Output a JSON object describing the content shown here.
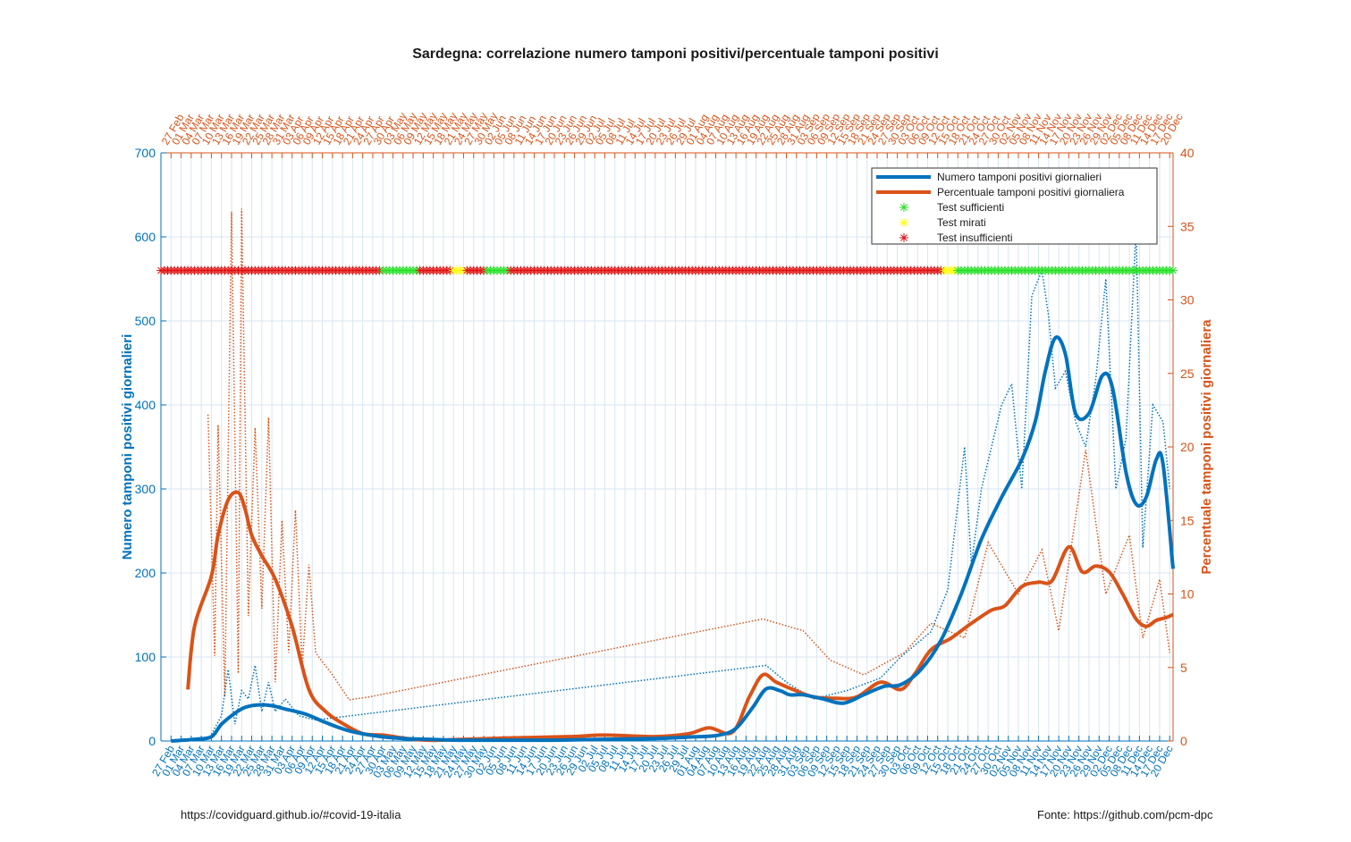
{
  "chart_data": {
    "type": "line",
    "title": "Sardegna: correlazione numero tamponi positivi/percentuale tamponi positivi",
    "ylabel_left": "Numero tamponi positivi giornalieri",
    "ylabel_right": "Percentuale tamponi positivi giornaliera",
    "ylim_left": [
      0,
      700
    ],
    "ylim_right": [
      0,
      40
    ],
    "yticks_left": [
      0,
      100,
      200,
      300,
      400,
      500,
      600,
      700
    ],
    "yticks_right": [
      0,
      5,
      10,
      15,
      20,
      25,
      30,
      35,
      40
    ],
    "x_range": [
      "2020-02-24",
      "2020-12-21"
    ],
    "x_tick_start": "2020-02-27",
    "x_tick_step_days": 3,
    "grid": true,
    "legend_position": "top-right",
    "legend": [
      {
        "label": "Numero tamponi positivi giornalieri",
        "kind": "line",
        "color": "#0072bd"
      },
      {
        "label": "Percentuale tamponi positivi giornaliera",
        "kind": "line",
        "color": "#d95319"
      },
      {
        "label": "Test sufficienti",
        "kind": "star",
        "color": "#22e022"
      },
      {
        "label": "Test mirati",
        "kind": "star",
        "color": "#ffff00"
      },
      {
        "label": "Test insufficienti",
        "kind": "star",
        "color": "#e01010"
      }
    ],
    "colors": {
      "left": "#0072bd",
      "right": "#d95319",
      "sufficient": "#22e022",
      "targeted": "#ffff00",
      "insufficient": "#e01010"
    },
    "marker_level_left_axis": 560,
    "test_status_segments": [
      {
        "from": "2020-02-24",
        "to": "2020-04-29",
        "status": "insufficient"
      },
      {
        "from": "2020-04-30",
        "to": "2020-05-10",
        "status": "sufficient"
      },
      {
        "from": "2020-05-11",
        "to": "2020-05-20",
        "status": "insufficient"
      },
      {
        "from": "2020-05-21",
        "to": "2020-05-24",
        "status": "targeted"
      },
      {
        "from": "2020-05-25",
        "to": "2020-05-30",
        "status": "insufficient"
      },
      {
        "from": "2020-05-31",
        "to": "2020-06-06",
        "status": "sufficient"
      },
      {
        "from": "2020-06-07",
        "to": "2020-10-13",
        "status": "insufficient"
      },
      {
        "from": "2020-10-14",
        "to": "2020-10-17",
        "status": "targeted"
      },
      {
        "from": "2020-10-18",
        "to": "2020-12-21",
        "status": "sufficient"
      }
    ],
    "series": [
      {
        "name": "Numero tamponi positivi giornalieri",
        "axis": "left",
        "smoothed": {
          "dates": [
            "2020-02-27",
            "2020-03-05",
            "2020-03-10",
            "2020-03-13",
            "2020-03-17",
            "2020-03-20",
            "2020-03-24",
            "2020-03-28",
            "2020-04-01",
            "2020-04-07",
            "2020-04-13",
            "2020-04-20",
            "2020-04-28",
            "2020-05-06",
            "2020-05-14",
            "2020-05-22",
            "2020-06-05",
            "2020-06-20",
            "2020-07-05",
            "2020-07-20",
            "2020-08-01",
            "2020-08-08",
            "2020-08-13",
            "2020-08-18",
            "2020-08-22",
            "2020-08-26",
            "2020-08-29",
            "2020-09-02",
            "2020-09-08",
            "2020-09-14",
            "2020-09-20",
            "2020-09-26",
            "2020-10-01",
            "2020-10-07",
            "2020-10-13",
            "2020-10-19",
            "2020-10-25",
            "2020-10-31",
            "2020-11-06",
            "2020-11-10",
            "2020-11-13",
            "2020-11-16",
            "2020-11-19",
            "2020-11-22",
            "2020-11-26",
            "2020-11-30",
            "2020-12-03",
            "2020-12-07",
            "2020-12-10",
            "2020-12-13",
            "2020-12-16",
            "2020-12-18",
            "2020-12-21"
          ],
          "values": [
            0,
            2,
            5,
            20,
            33,
            40,
            43,
            42,
            38,
            32,
            22,
            12,
            6,
            3,
            2,
            1,
            1,
            1,
            2,
            3,
            5,
            7,
            15,
            40,
            62,
            60,
            55,
            55,
            50,
            45,
            55,
            65,
            67,
            85,
            120,
            175,
            240,
            290,
            335,
            380,
            440,
            480,
            460,
            390,
            390,
            435,
            420,
            320,
            282,
            290,
            335,
            330,
            205
          ]
        },
        "daily": {
          "dates": [
            "2020-03-10",
            "2020-03-13",
            "2020-03-15",
            "2020-03-17",
            "2020-03-19",
            "2020-03-21",
            "2020-03-23",
            "2020-03-25",
            "2020-03-27",
            "2020-03-29",
            "2020-04-01",
            "2020-04-05",
            "2020-04-10",
            "2020-08-22",
            "2020-08-28",
            "2020-09-05",
            "2020-09-15",
            "2020-09-25",
            "2020-10-01",
            "2020-10-10",
            "2020-10-15",
            "2020-10-20",
            "2020-10-22",
            "2020-10-25",
            "2020-10-28",
            "2020-10-31",
            "2020-11-03",
            "2020-11-06",
            "2020-11-09",
            "2020-11-12",
            "2020-11-14",
            "2020-11-16",
            "2020-11-19",
            "2020-11-22",
            "2020-11-25",
            "2020-11-28",
            "2020-12-01",
            "2020-12-04",
            "2020-12-07",
            "2020-12-10",
            "2020-12-12",
            "2020-12-15",
            "2020-12-18",
            "2020-12-20"
          ],
          "values": [
            8,
            30,
            85,
            20,
            60,
            50,
            90,
            35,
            70,
            35,
            50,
            30,
            25,
            90,
            70,
            50,
            60,
            75,
            100,
            130,
            180,
            350,
            210,
            300,
            350,
            400,
            425,
            300,
            530,
            560,
            505,
            420,
            440,
            380,
            350,
            430,
            550,
            300,
            360,
            610,
            230,
            400,
            380,
            300
          ]
        }
      },
      {
        "name": "Percentuale tamponi positivi giornaliera",
        "axis": "right",
        "smoothed": {
          "dates": [
            "2020-03-03",
            "2020-03-05",
            "2020-03-10",
            "2020-03-12",
            "2020-03-15",
            "2020-03-18",
            "2020-03-20",
            "2020-03-22",
            "2020-03-25",
            "2020-03-29",
            "2020-04-03",
            "2020-04-08",
            "2020-04-13",
            "2020-04-18",
            "2020-04-24",
            "2020-04-30",
            "2020-05-06",
            "2020-05-10",
            "2020-05-15",
            "2020-05-22",
            "2020-06-05",
            "2020-06-25",
            "2020-07-05",
            "2020-07-20",
            "2020-07-30",
            "2020-08-05",
            "2020-08-12",
            "2020-08-17",
            "2020-08-21",
            "2020-08-25",
            "2020-08-30",
            "2020-09-05",
            "2020-09-12",
            "2020-09-18",
            "2020-09-25",
            "2020-10-01",
            "2020-10-05",
            "2020-10-10",
            "2020-10-16",
            "2020-10-22",
            "2020-10-28",
            "2020-11-01",
            "2020-11-06",
            "2020-11-11",
            "2020-11-15",
            "2020-11-20",
            "2020-11-24",
            "2020-11-28",
            "2020-12-02",
            "2020-12-06",
            "2020-12-10",
            "2020-12-13",
            "2020-12-16",
            "2020-12-19",
            "2020-12-21"
          ],
          "values": [
            3.5,
            7.8,
            11.2,
            14,
            16.4,
            16.9,
            15.8,
            14,
            12.6,
            11,
            7.8,
            3.5,
            2,
            1.2,
            0.5,
            0.4,
            0.2,
            0.1,
            0.05,
            0.1,
            0.2,
            0.3,
            0.4,
            0.3,
            0.5,
            0.9,
            0.6,
            3,
            4.5,
            4,
            3.5,
            3,
            2.9,
            3,
            4,
            3.5,
            4.5,
            6.2,
            7,
            8,
            8.9,
            9.2,
            10.5,
            10.8,
            10.9,
            13.2,
            11.5,
            11.9,
            11.5,
            10,
            8.3,
            7.8,
            8.2,
            8.4,
            8.6
          ]
        },
        "daily": {
          "dates": [
            "2020-03-09",
            "2020-03-11",
            "2020-03-12",
            "2020-03-14",
            "2020-03-16",
            "2020-03-18",
            "2020-03-19",
            "2020-03-21",
            "2020-03-23",
            "2020-03-25",
            "2020-03-27",
            "2020-03-29",
            "2020-03-31",
            "2020-04-02",
            "2020-04-04",
            "2020-04-06",
            "2020-04-08",
            "2020-04-10",
            "2020-04-15",
            "2020-04-20",
            "2020-04-26",
            "2020-08-21",
            "2020-09-02",
            "2020-09-10",
            "2020-09-20",
            "2020-10-02",
            "2020-10-10",
            "2020-10-20",
            "2020-10-27",
            "2020-11-05",
            "2020-11-12",
            "2020-11-17",
            "2020-11-25",
            "2020-12-01",
            "2020-12-08",
            "2020-12-12",
            "2020-12-17",
            "2020-12-20"
          ],
          "values": [
            22.2,
            5.8,
            21.5,
            3,
            36,
            4.6,
            36.2,
            8.5,
            21.3,
            9,
            22,
            4,
            15,
            6,
            15.7,
            5,
            12,
            6,
            4.5,
            2.8,
            3,
            8.3,
            7.5,
            5.5,
            4.5,
            6,
            8,
            7,
            13.5,
            10,
            13,
            7.5,
            19.8,
            10,
            14,
            7,
            11,
            6
          ]
        }
      }
    ]
  },
  "footer_left": "https://covidguard.github.io/#covid-19-italia",
  "footer_right": "Fonte: https://github.com/pcm-dpc"
}
